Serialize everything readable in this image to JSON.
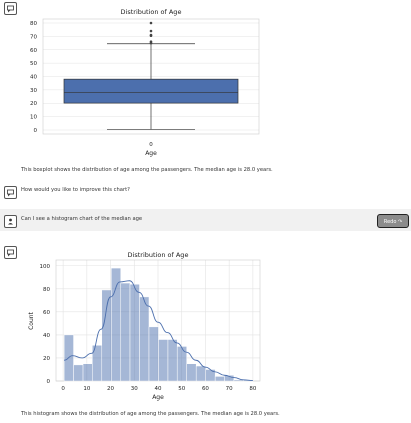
{
  "conversation": {
    "boxplot_caption": "This boxplot shows the distribution of age among the passengers. The median age is 28.0 years.",
    "assistant_question": "How would you like to improve this chart?",
    "user_message": "Can I see a histogram chart of the median age",
    "redo_label": "Redo ↷",
    "histogram_caption": "This histogram shows the distribution of age among the passengers. The median age is 28.0 years."
  },
  "chart_data": [
    {
      "type": "boxplot",
      "title": "Distribution of Age",
      "xlabel": "Age",
      "categories": [
        "0"
      ],
      "yticks": [
        0,
        10,
        20,
        30,
        40,
        50,
        60,
        70,
        80
      ],
      "ylim": [
        -3,
        83
      ],
      "grid": true,
      "box": {
        "whisker_low": 0.42,
        "q1": 20.1,
        "median": 28,
        "q3": 38,
        "whisker_high": 64.5
      },
      "outliers": [
        65,
        66,
        70.5,
        71,
        74,
        80
      ],
      "color": "#4c6fad"
    },
    {
      "type": "bar",
      "title": "Distribution of Age",
      "xlabel": "Age",
      "ylabel": "Count",
      "xticks": [
        0,
        10,
        20,
        30,
        40,
        50,
        60,
        70,
        80
      ],
      "yticks": [
        0,
        20,
        40,
        60,
        80,
        100
      ],
      "xlim": [
        -3,
        83
      ],
      "ylim": [
        0,
        105
      ],
      "grid": true,
      "bin_edges": [
        0.42,
        4.4,
        8.4,
        12.3,
        16.3,
        20.3,
        24.3,
        28.2,
        32.2,
        36.2,
        40.2,
        44.2,
        48.1,
        52.1,
        56.1,
        60.1,
        64.1,
        68.0,
        72.0,
        76.0,
        80.0
      ],
      "values": [
        40,
        14,
        15,
        31,
        79,
        98,
        85,
        84,
        73,
        47,
        36,
        36,
        30,
        15,
        13,
        10,
        4,
        5,
        1,
        1
      ],
      "kde_x": [
        0.4,
        4,
        8,
        12,
        16,
        20,
        24,
        28,
        32,
        36,
        40,
        44,
        48,
        52,
        56,
        60,
        64,
        68,
        72,
        76,
        80
      ],
      "kde_y": [
        18,
        22,
        20,
        24,
        45,
        73,
        86,
        87,
        77,
        65,
        51,
        42,
        33,
        25,
        18,
        12,
        8,
        5,
        3,
        1,
        0.5
      ],
      "color": "#4c6fad"
    }
  ]
}
